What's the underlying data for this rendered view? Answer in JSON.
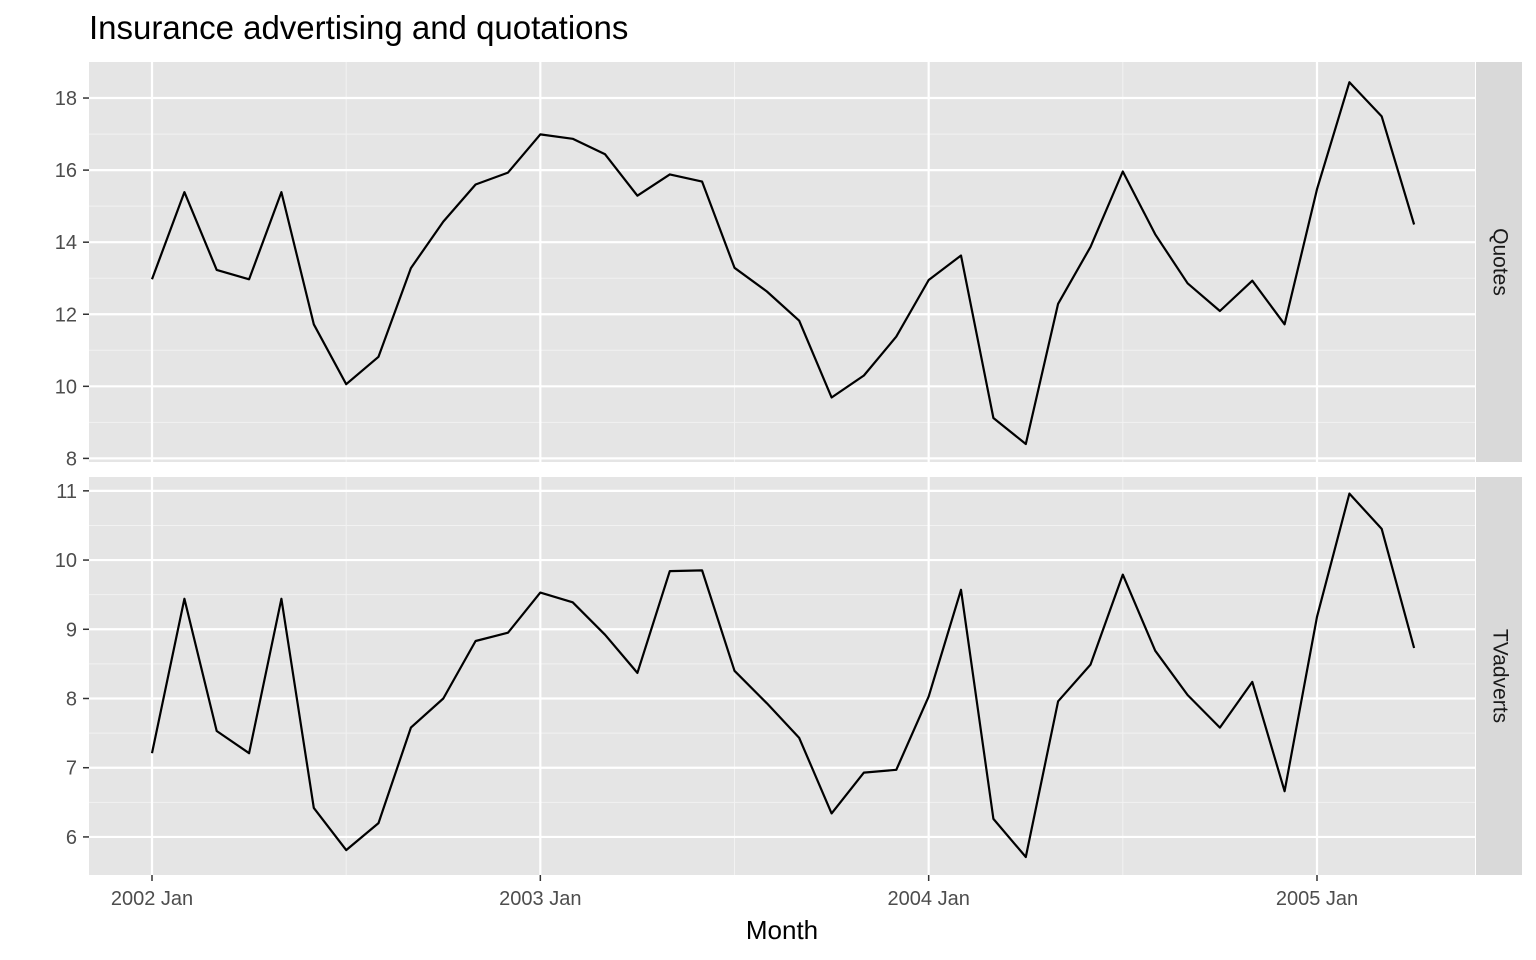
{
  "chart_data": {
    "type": "line",
    "title": "Insurance advertising and quotations",
    "xlabel": "Month",
    "ylabel": "",
    "x_tick_labels": [
      "2002 Jan",
      "2003 Jan",
      "2004 Jan",
      "2005 Jan"
    ],
    "x_tick_values": [
      "2002-01",
      "2003-01",
      "2004-01",
      "2005-01"
    ],
    "x": [
      "2002-01",
      "2002-02",
      "2002-03",
      "2002-04",
      "2002-05",
      "2002-06",
      "2002-07",
      "2002-08",
      "2002-09",
      "2002-10",
      "2002-11",
      "2002-12",
      "2003-01",
      "2003-02",
      "2003-03",
      "2003-04",
      "2003-05",
      "2003-06",
      "2003-07",
      "2003-08",
      "2003-09",
      "2003-10",
      "2003-11",
      "2003-12",
      "2004-01",
      "2004-02",
      "2004-03",
      "2004-04",
      "2004-05",
      "2004-06",
      "2004-07",
      "2004-08",
      "2004-09",
      "2004-10",
      "2004-11",
      "2004-12",
      "2005-01",
      "2005-02",
      "2005-03",
      "2005-04"
    ],
    "grid": true,
    "line_color": "#000000",
    "panel_background": "#e5e5e5",
    "strip_background": "#d9d9d9",
    "series": [
      {
        "name": "Quotes",
        "ylim": [
          7.9,
          19.0
        ],
        "y_ticks": [
          8,
          10,
          12,
          14,
          16,
          18
        ],
        "values": [
          12.97,
          15.39,
          13.23,
          12.97,
          15.39,
          11.72,
          10.06,
          10.82,
          13.28,
          14.57,
          15.6,
          15.93,
          16.99,
          16.87,
          16.44,
          15.29,
          15.88,
          15.68,
          13.29,
          12.63,
          11.82,
          9.69,
          10.3,
          11.38,
          12.95,
          13.63,
          9.12,
          8.4,
          12.29,
          13.87,
          15.96,
          14.22,
          12.86,
          12.09,
          12.93,
          11.72,
          15.47,
          18.44,
          17.49,
          14.49
        ]
      },
      {
        "name": "TVadverts",
        "ylim": [
          5.45,
          11.2
        ],
        "y_ticks": [
          6,
          7,
          8,
          9,
          10,
          11
        ],
        "values": [
          7.21,
          9.44,
          7.53,
          7.21,
          9.44,
          6.42,
          5.81,
          6.2,
          7.58,
          8.0,
          8.83,
          8.95,
          9.53,
          9.39,
          8.92,
          8.37,
          9.84,
          9.85,
          8.4,
          7.93,
          7.43,
          6.34,
          6.93,
          6.97,
          8.03,
          9.57,
          6.26,
          5.71,
          7.96,
          8.49,
          9.79,
          8.69,
          8.05,
          7.58,
          8.24,
          6.66,
          9.18,
          10.96,
          10.45,
          8.73
        ]
      }
    ]
  }
}
